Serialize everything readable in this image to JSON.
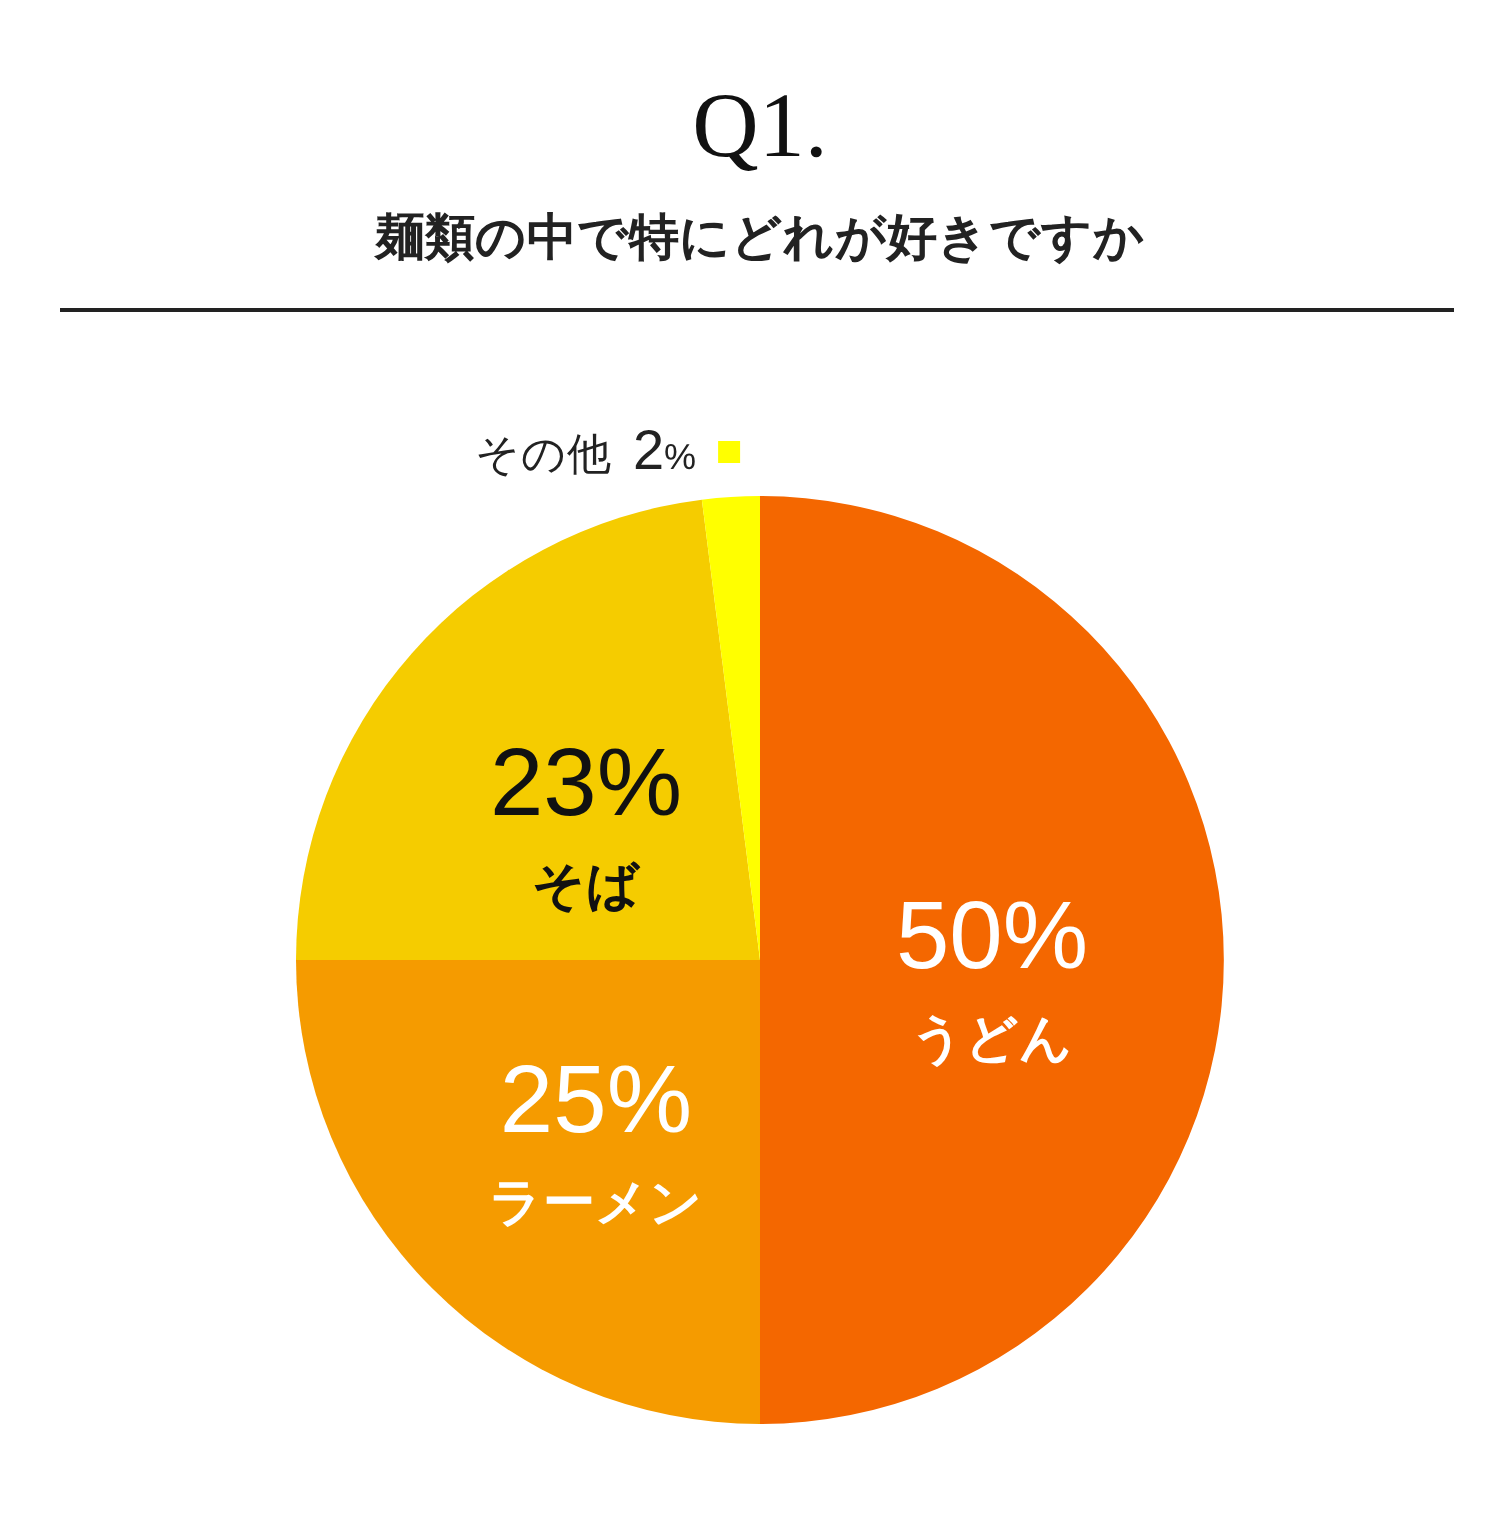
{
  "chart_data": {
    "type": "pie",
    "title": "Q1.",
    "subtitle": "麺類の中で特にどれが好きですか",
    "categories": [
      "うどん",
      "ラーメン",
      "そば",
      "その他"
    ],
    "values": [
      50,
      25,
      23,
      2
    ],
    "colors": [
      "#f46700",
      "#f59b00",
      "#f5cc00",
      "#ffff00"
    ],
    "value_labels": [
      "50%",
      "25%",
      "23%",
      "2%"
    ]
  }
}
